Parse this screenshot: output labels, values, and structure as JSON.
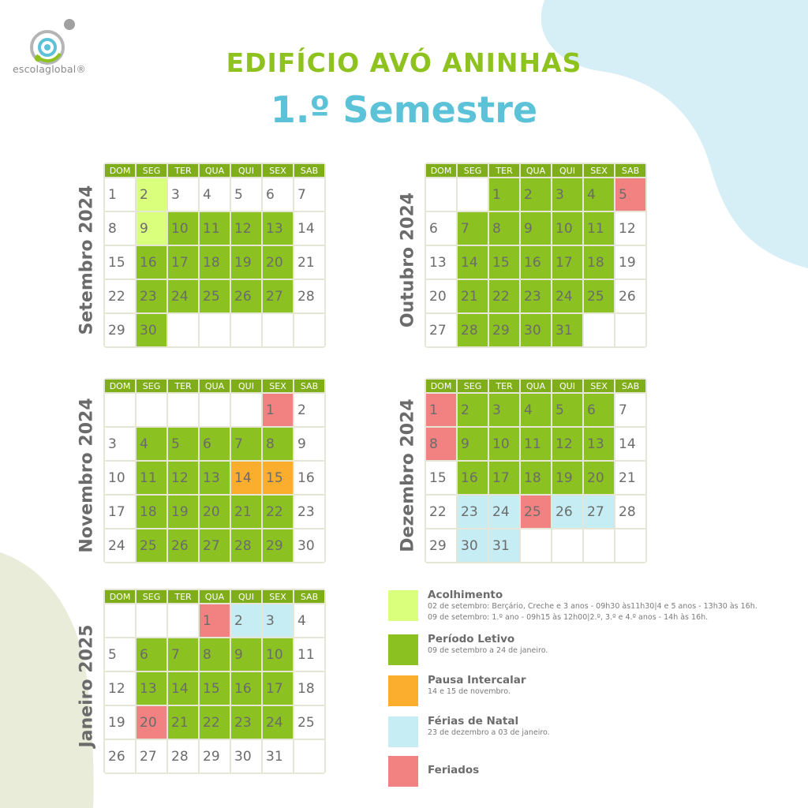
{
  "logo": {
    "text": "escolaglobal®"
  },
  "header": {
    "title": "EDIFÍCIO AVÓ ANINHAS",
    "subtitle": "1.º Semestre"
  },
  "weekdays": [
    "DOM",
    "SEG",
    "TER",
    "QUA",
    "QUI",
    "SEX",
    "SAB"
  ],
  "months": [
    {
      "label": "Setembro 2024",
      "rows": [
        [
          [
            "1",
            ""
          ],
          [
            "2",
            "lg"
          ],
          [
            "3",
            ""
          ],
          [
            "4",
            ""
          ],
          [
            "5",
            ""
          ],
          [
            "6",
            ""
          ],
          [
            "7",
            ""
          ]
        ],
        [
          [
            "8",
            ""
          ],
          [
            "9",
            "lg"
          ],
          [
            "10",
            "g"
          ],
          [
            "11",
            "g"
          ],
          [
            "12",
            "g"
          ],
          [
            "13",
            "g"
          ],
          [
            "14",
            ""
          ]
        ],
        [
          [
            "15",
            ""
          ],
          [
            "16",
            "g"
          ],
          [
            "17",
            "g"
          ],
          [
            "18",
            "g"
          ],
          [
            "19",
            "g"
          ],
          [
            "20",
            "g"
          ],
          [
            "21",
            ""
          ]
        ],
        [
          [
            "22",
            ""
          ],
          [
            "23",
            "g"
          ],
          [
            "24",
            "g"
          ],
          [
            "25",
            "g"
          ],
          [
            "26",
            "g"
          ],
          [
            "27",
            "g"
          ],
          [
            "28",
            ""
          ]
        ],
        [
          [
            "29",
            ""
          ],
          [
            "30",
            "g"
          ],
          [
            "",
            ""
          ],
          [
            "",
            ""
          ],
          [
            "",
            ""
          ],
          [
            "",
            ""
          ],
          [
            "",
            ""
          ]
        ]
      ]
    },
    {
      "label": "Outubro 2024",
      "rows": [
        [
          [
            "",
            ""
          ],
          [
            "",
            ""
          ],
          [
            "1",
            "g"
          ],
          [
            "2",
            "g"
          ],
          [
            "3",
            "g"
          ],
          [
            "4",
            "g"
          ],
          [
            "5",
            "r"
          ]
        ],
        [
          [
            "6",
            ""
          ],
          [
            "7",
            "g"
          ],
          [
            "8",
            "g"
          ],
          [
            "9",
            "g"
          ],
          [
            "10",
            "g"
          ],
          [
            "11",
            "g"
          ],
          [
            "12",
            ""
          ]
        ],
        [
          [
            "13",
            ""
          ],
          [
            "14",
            "g"
          ],
          [
            "15",
            "g"
          ],
          [
            "16",
            "g"
          ],
          [
            "17",
            "g"
          ],
          [
            "18",
            "g"
          ],
          [
            "19",
            ""
          ]
        ],
        [
          [
            "20",
            ""
          ],
          [
            "21",
            "g"
          ],
          [
            "22",
            "g"
          ],
          [
            "23",
            "g"
          ],
          [
            "24",
            "g"
          ],
          [
            "25",
            "g"
          ],
          [
            "26",
            ""
          ]
        ],
        [
          [
            "27",
            ""
          ],
          [
            "28",
            "g"
          ],
          [
            "29",
            "g"
          ],
          [
            "30",
            "g"
          ],
          [
            "31",
            "g"
          ],
          [
            "",
            ""
          ],
          [
            "",
            ""
          ]
        ]
      ]
    },
    {
      "label": "Novembro 2024",
      "rows": [
        [
          [
            "",
            ""
          ],
          [
            "",
            ""
          ],
          [
            "",
            ""
          ],
          [
            "",
            ""
          ],
          [
            "",
            ""
          ],
          [
            "1",
            "r"
          ],
          [
            "2",
            ""
          ]
        ],
        [
          [
            "3",
            ""
          ],
          [
            "4",
            "g"
          ],
          [
            "5",
            "g"
          ],
          [
            "6",
            "g"
          ],
          [
            "7",
            "g"
          ],
          [
            "8",
            "g"
          ],
          [
            "9",
            ""
          ]
        ],
        [
          [
            "10",
            ""
          ],
          [
            "11",
            "g"
          ],
          [
            "12",
            "g"
          ],
          [
            "13",
            "g"
          ],
          [
            "14",
            "o"
          ],
          [
            "15",
            "o"
          ],
          [
            "16",
            ""
          ]
        ],
        [
          [
            "17",
            ""
          ],
          [
            "18",
            "g"
          ],
          [
            "19",
            "g"
          ],
          [
            "20",
            "g"
          ],
          [
            "21",
            "g"
          ],
          [
            "22",
            "g"
          ],
          [
            "23",
            ""
          ]
        ],
        [
          [
            "24",
            ""
          ],
          [
            "25",
            "g"
          ],
          [
            "26",
            "g"
          ],
          [
            "27",
            "g"
          ],
          [
            "28",
            "g"
          ],
          [
            "29",
            "g"
          ],
          [
            "30",
            ""
          ]
        ]
      ]
    },
    {
      "label": "Dezembro 2024",
      "rows": [
        [
          [
            "1",
            "r"
          ],
          [
            "2",
            "g"
          ],
          [
            "3",
            "g"
          ],
          [
            "4",
            "g"
          ],
          [
            "5",
            "g"
          ],
          [
            "6",
            "g"
          ],
          [
            "7",
            ""
          ]
        ],
        [
          [
            "8",
            "r"
          ],
          [
            "9",
            "g"
          ],
          [
            "10",
            "g"
          ],
          [
            "11",
            "g"
          ],
          [
            "12",
            "g"
          ],
          [
            "13",
            "g"
          ],
          [
            "14",
            ""
          ]
        ],
        [
          [
            "15",
            ""
          ],
          [
            "16",
            "g"
          ],
          [
            "17",
            "g"
          ],
          [
            "18",
            "g"
          ],
          [
            "19",
            "g"
          ],
          [
            "20",
            "g"
          ],
          [
            "21",
            ""
          ]
        ],
        [
          [
            "22",
            ""
          ],
          [
            "23",
            "b"
          ],
          [
            "24",
            "b"
          ],
          [
            "25",
            "r"
          ],
          [
            "26",
            "b"
          ],
          [
            "27",
            "b"
          ],
          [
            "28",
            ""
          ]
        ],
        [
          [
            "29",
            ""
          ],
          [
            "30",
            "b"
          ],
          [
            "31",
            "b"
          ],
          [
            "",
            ""
          ],
          [
            "",
            ""
          ],
          [
            "",
            ""
          ],
          [
            "",
            ""
          ]
        ]
      ]
    },
    {
      "label": "Janeiro 2025",
      "rows": [
        [
          [
            "",
            ""
          ],
          [
            "",
            ""
          ],
          [
            "",
            ""
          ],
          [
            "1",
            "r"
          ],
          [
            "2",
            "b"
          ],
          [
            "3",
            "b"
          ],
          [
            "4",
            ""
          ]
        ],
        [
          [
            "5",
            ""
          ],
          [
            "6",
            "g"
          ],
          [
            "7",
            "g"
          ],
          [
            "8",
            "g"
          ],
          [
            "9",
            "g"
          ],
          [
            "10",
            "g"
          ],
          [
            "11",
            ""
          ]
        ],
        [
          [
            "12",
            ""
          ],
          [
            "13",
            "g"
          ],
          [
            "14",
            "g"
          ],
          [
            "15",
            "g"
          ],
          [
            "16",
            "g"
          ],
          [
            "17",
            "g"
          ],
          [
            "18",
            ""
          ]
        ],
        [
          [
            "19",
            ""
          ],
          [
            "20",
            "r"
          ],
          [
            "21",
            "g"
          ],
          [
            "22",
            "g"
          ],
          [
            "23",
            "g"
          ],
          [
            "24",
            "g"
          ],
          [
            "25",
            ""
          ]
        ],
        [
          [
            "26",
            ""
          ],
          [
            "27",
            ""
          ],
          [
            "28",
            ""
          ],
          [
            "29",
            ""
          ],
          [
            "30",
            ""
          ],
          [
            "31",
            ""
          ],
          [
            "",
            ""
          ]
        ]
      ]
    }
  ],
  "legend": [
    {
      "key": "lg",
      "color": "#daff7c",
      "title": "Acolhimento",
      "lines": [
        "02 de setembro: Berçário, Creche e 3 anos - 09h30 às11h30|4 e 5 anos - 13h30 às 16h.",
        "09 de setembro: 1.º ano - 09h15 às 12h00|2.º, 3.º e 4.º anos - 14h às 16h."
      ]
    },
    {
      "key": "g",
      "color": "#8bc121",
      "title": "Período Letivo",
      "lines": [
        "09 de setembro a 24 de janeiro."
      ]
    },
    {
      "key": "o",
      "color": "#fbae2d",
      "title": "Pausa Intercalar",
      "lines": [
        "14 e 15 de novembro."
      ]
    },
    {
      "key": "b",
      "color": "#c6ecf4",
      "title": "Férias de Natal",
      "lines": [
        "23 de dezembro a 03 de janeiro."
      ]
    },
    {
      "key": "r",
      "color": "#f28282",
      "title": "Feriados",
      "lines": []
    }
  ]
}
